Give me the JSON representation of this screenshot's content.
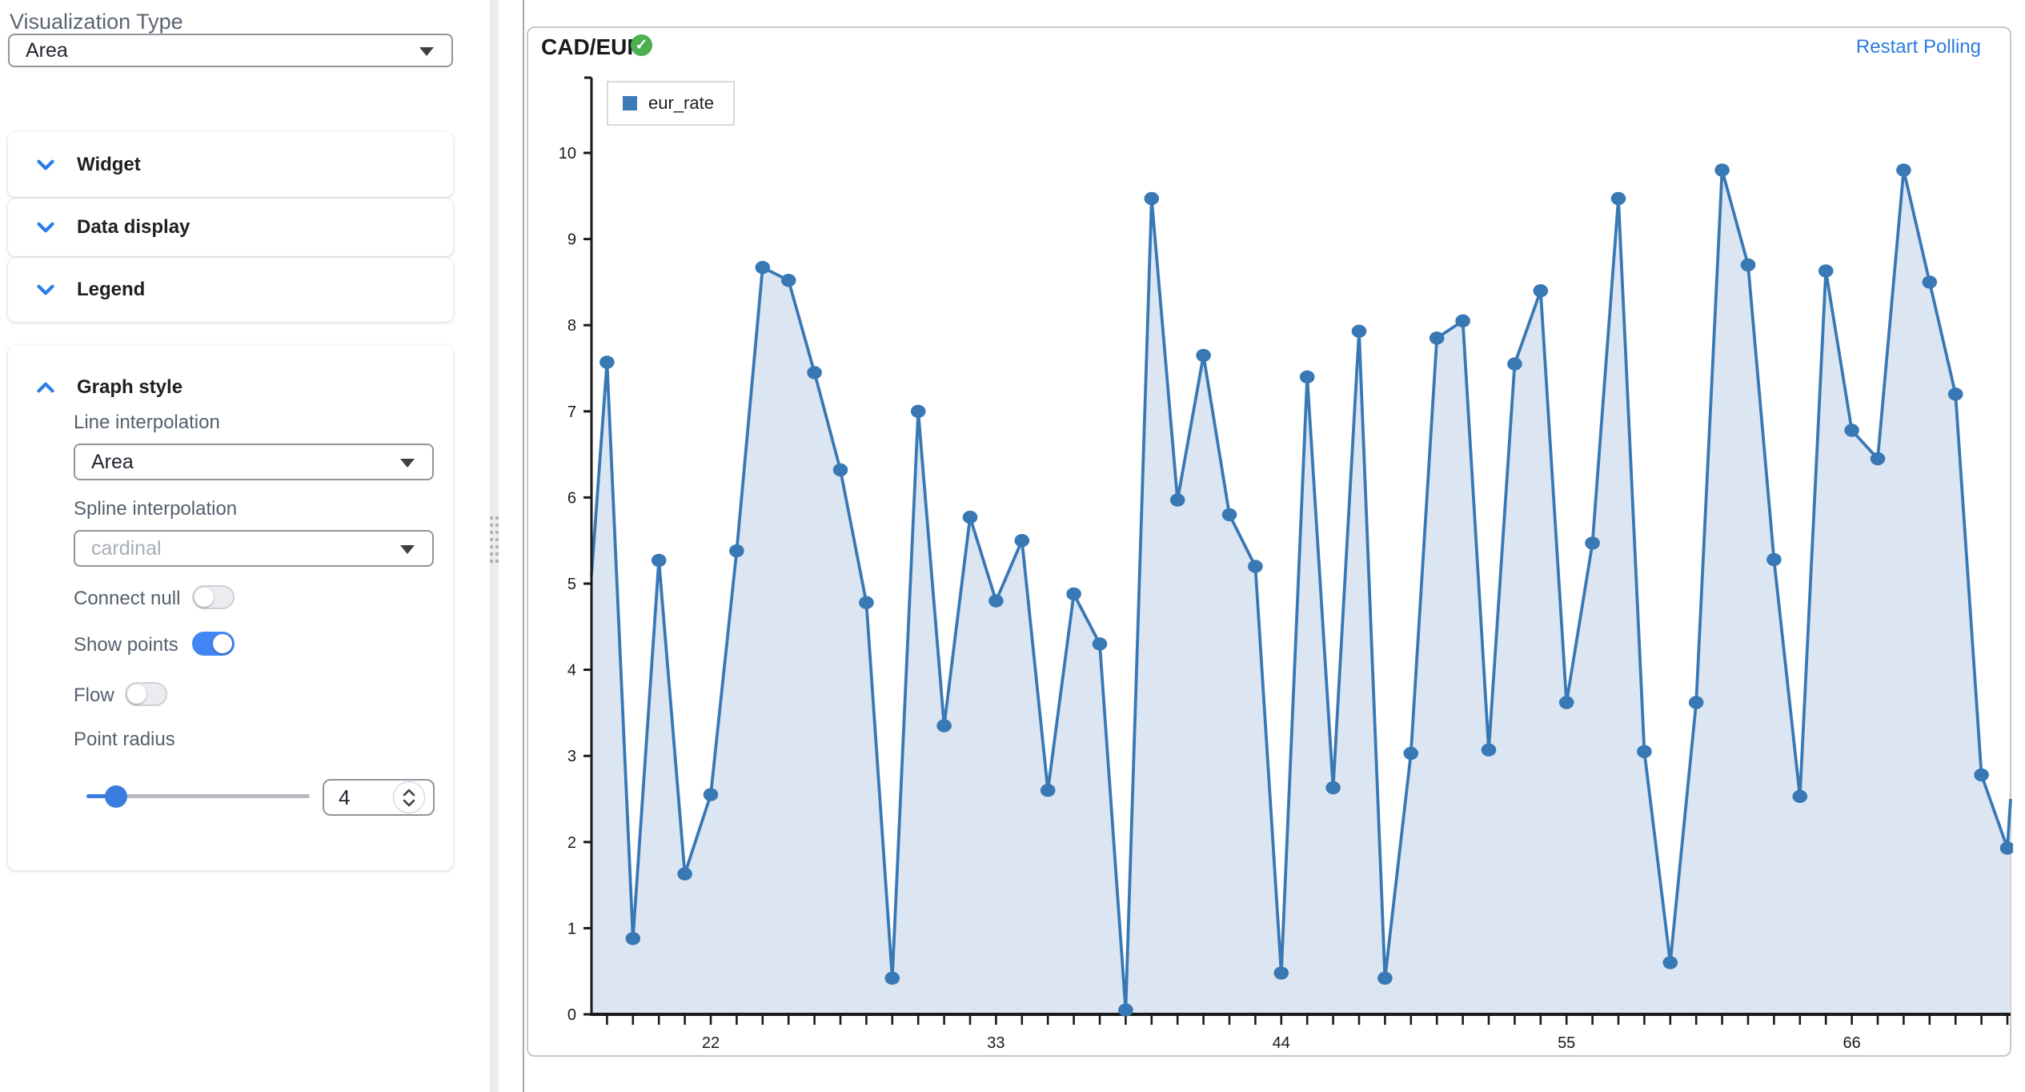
{
  "sidebar": {
    "visualization_type": {
      "label": "Visualization Type",
      "value": "Area"
    },
    "sections": [
      {
        "label": "Widget"
      },
      {
        "label": "Data display"
      },
      {
        "label": "Legend"
      }
    ],
    "graph_style": {
      "header": "Graph style",
      "line_interpolation": {
        "label": "Line interpolation",
        "value": "Area"
      },
      "spline_interpolation": {
        "label": "Spline interpolation",
        "value": "cardinal"
      },
      "connect_null": {
        "label": "Connect null",
        "on": false
      },
      "show_points": {
        "label": "Show points",
        "on": true
      },
      "flow": {
        "label": "Flow",
        "on": false
      },
      "point_radius": {
        "label": "Point radius",
        "value": "4"
      }
    }
  },
  "chart": {
    "title": "CAD/EUR",
    "status_icon": "check-circle",
    "restart_label": "Restart Polling",
    "legend": {
      "label": "eur_rate",
      "color": "#3b7cb8"
    },
    "chart_data": {
      "type": "area",
      "x": [
        18,
        19,
        20,
        21,
        22,
        23,
        24,
        25,
        26,
        27,
        28,
        29,
        30,
        31,
        32,
        33,
        34,
        35,
        36,
        37,
        38,
        39,
        40,
        41,
        42,
        43,
        44,
        45,
        46,
        47,
        48,
        49,
        50,
        51,
        52,
        53,
        54,
        55,
        56,
        57,
        58,
        59,
        60,
        61,
        62,
        63,
        64,
        65,
        66,
        67,
        68,
        69,
        70,
        71,
        72
      ],
      "series": [
        {
          "name": "eur_rate",
          "values": [
            7.57,
            0.88,
            5.27,
            1.63,
            2.55,
            5.38,
            8.67,
            8.52,
            7.45,
            6.32,
            4.78,
            0.42,
            7.0,
            3.35,
            5.77,
            4.8,
            5.5,
            2.6,
            4.88,
            4.3,
            0.05,
            9.47,
            5.97,
            7.65,
            5.8,
            5.2,
            0.48,
            7.4,
            2.63,
            7.93,
            0.42,
            3.03,
            7.85,
            8.05,
            3.07,
            7.55,
            8.4,
            3.62,
            5.47,
            9.47,
            3.05,
            0.6,
            3.62,
            9.8,
            8.7,
            5.28,
            2.53,
            8.63,
            6.78,
            6.45,
            9.8,
            8.5,
            7.2,
            2.78,
            1.93
          ]
        }
      ],
      "x_tick_labels": [
        "22",
        "33",
        "44",
        "55",
        "66"
      ],
      "y_ticks": [
        0,
        1,
        2,
        3,
        4,
        5,
        6,
        7,
        8,
        9,
        10
      ],
      "ylim": [
        0,
        10
      ],
      "grid": false,
      "legend_position": "top-left",
      "clipped_edges": {
        "left_value": 5.1,
        "right_value": 2.5
      },
      "colors": {
        "line": "#3878b4",
        "fill": "#dce6f2",
        "axis": "#1a1a1a",
        "point": "#3878b4"
      }
    }
  },
  "colors": {
    "accent_blue": "#2b7de9",
    "toggle_on": "#4285f4",
    "link_blue": "#2b7ce0",
    "badge_green": "#4caf50"
  },
  "icons": {
    "status_check": "✓"
  }
}
